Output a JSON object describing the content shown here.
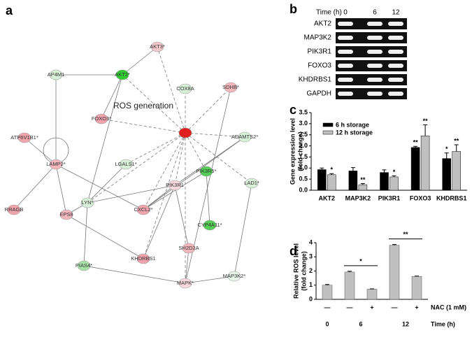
{
  "network": {
    "panel": "a",
    "title": "ROS generation",
    "nodes": [
      {
        "label": "AKT3*",
        "color": "#f4c7cc"
      },
      {
        "label": "AKT2*",
        "color": "#33cc33"
      },
      {
        "label": "AP4M1",
        "color": "#d8f0d8"
      },
      {
        "label": "COX8A",
        "color": "#d8f0d8"
      },
      {
        "label": "SDHB*",
        "color": "#f4b6bd"
      },
      {
        "label": "FOXO3*",
        "color": "#f2a4ad"
      },
      {
        "color": "#e0201f"
      },
      {
        "label": "ATP6V1B1*",
        "color": "#f2a4ad"
      },
      {
        "label": "ADAMTS2*",
        "color": "#d8f0d8"
      },
      {
        "label": "LAMP2*",
        "color": "#f4b6bd"
      },
      {
        "label": "LGALS1*",
        "color": "#d8f0d8"
      },
      {
        "label": "PIK3R5*",
        "color": "#55cc55"
      },
      {
        "label": "LAD1*",
        "color": "#d8f0d8"
      },
      {
        "label": "PIK3R1",
        "color": "#f8d8dc"
      },
      {
        "label": "LYN*",
        "color": "#d8f0d8"
      },
      {
        "label": "CXCL2*",
        "color": "#f2a4ad"
      },
      {
        "label": "EPS8",
        "color": "#f4b6bd"
      },
      {
        "label": "RRAGB",
        "color": "#f2a4ad"
      },
      {
        "label": "CYP4A11*",
        "color": "#55cc55"
      },
      {
        "label": "SH2D2A",
        "color": "#f4b6bd"
      },
      {
        "label": "PIAS4*",
        "color": "#a8e0a8"
      },
      {
        "label": "KHDRBS1",
        "color": "#f2a4ad"
      },
      {
        "label": "MAP3K2*",
        "color": "#e8f4e8"
      },
      {
        "label": "MAPK*",
        "color": "#f8d8dc"
      }
    ]
  },
  "gel": {
    "panel": "b",
    "time_label": "Time (h)",
    "times": [
      "0",
      "6",
      "12"
    ],
    "genes": [
      "AKT2",
      "MAP3K2",
      "PIK3R1",
      "FOXO3",
      "KHDRBS1",
      "GAPDH"
    ]
  },
  "chart_data": [
    {
      "type": "grouped-bar",
      "panel": "c",
      "ylabel": [
        "Gene expression level",
        "(fold change)"
      ],
      "categories": [
        "AKT2",
        "MAP3K2",
        "PIK3R1",
        "FOXO3",
        "KHDRBS1"
      ],
      "series": [
        {
          "name": "6 h storage",
          "color": "#000000",
          "values": [
            0.93,
            0.87,
            0.8,
            1.93,
            1.43
          ],
          "errors": [
            0.07,
            0.15,
            0.12,
            0.05,
            0.25
          ],
          "significance": [
            null,
            null,
            null,
            "**",
            "*"
          ]
        },
        {
          "name": "12 h storage",
          "color": "#c0c0c0",
          "values": [
            0.7,
            0.25,
            0.6,
            2.45,
            1.75
          ],
          "errors": [
            0.05,
            0.05,
            0.05,
            0.5,
            0.3
          ],
          "significance": [
            "*",
            "**",
            "*",
            "**",
            "**"
          ]
        }
      ],
      "ylim": [
        0,
        3.5
      ],
      "yticks": [
        {
          "value": 0,
          "label": "0.0"
        },
        {
          "value": 0.5,
          "label": "0.5"
        },
        {
          "value": 1,
          "label": "1.0"
        },
        {
          "value": 1.5,
          "label": "1.5"
        },
        {
          "value": 2,
          "label": "2.0"
        },
        {
          "value": 2.5,
          "label": "2.5"
        },
        {
          "value": 3,
          "label": "3.0"
        },
        {
          "value": 3.5,
          "label": "3.5"
        }
      ],
      "legend": "top-left"
    },
    {
      "type": "bar",
      "panel": "d",
      "ylabel": [
        "Relative ROS level",
        "(fold change)"
      ],
      "categories": [
        "—",
        "—",
        "+",
        "—",
        "+"
      ],
      "category_title": "NAC (1 mM)",
      "groups": [
        {
          "label": "0",
          "size": 1
        },
        {
          "label": "6",
          "size": 2
        },
        {
          "label": "12",
          "size": 2
        }
      ],
      "group_title": "Time (h)",
      "values": [
        1.0,
        1.93,
        0.72,
        3.82,
        1.62
      ],
      "errors": [
        0.05,
        0.05,
        0.02,
        0.05,
        0.02
      ],
      "color": "#c0c0c0",
      "annotations": [
        {
          "text": "*",
          "from": 1,
          "to": 2
        },
        {
          "text": "**",
          "from": 3,
          "to": 4
        }
      ],
      "ylim": [
        0,
        4
      ],
      "yticks": [
        0,
        1,
        2,
        3,
        4
      ]
    }
  ]
}
